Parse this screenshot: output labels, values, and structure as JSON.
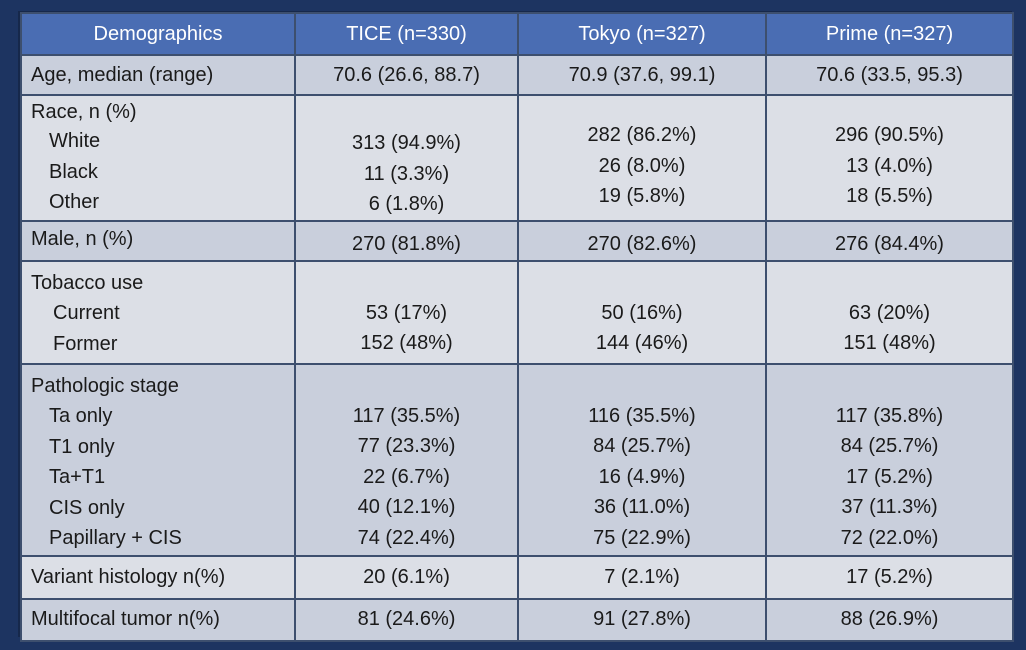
{
  "columns": [
    "Demographics",
    "TICE  (n=330)",
    "Tokyo  (n=327)",
    "Prime  (n=327)"
  ],
  "age": {
    "label": "Age, median (range)",
    "tice": "70.6 (26.6, 88.7)",
    "tokyo": "70.9 (37.6, 99.1)",
    "prime": "70.6 (33.5, 95.3)"
  },
  "race": {
    "label": "Race, n (%)",
    "rows": [
      {
        "label": "White",
        "tice": "313 (94.9%)",
        "tokyo": "282 (86.2%)",
        "prime": "296 (90.5%)"
      },
      {
        "label": "Black",
        "tice": "11 (3.3%)",
        "tokyo": "26 (8.0%)",
        "prime": "13 (4.0%)"
      },
      {
        "label": "Other",
        "tice": "6 (1.8%)",
        "tokyo": "19 (5.8%)",
        "prime": "18 (5.5%)"
      }
    ]
  },
  "male": {
    "label": "Male, n (%)",
    "tice": "270 (81.8%)",
    "tokyo": "270 (82.6%)",
    "prime": "276 (84.4%)"
  },
  "tobacco": {
    "label": "Tobacco use",
    "rows": [
      {
        "label": "Current",
        "tice": "53 (17%)",
        "tokyo": "50 (16%)",
        "prime": "63 (20%)"
      },
      {
        "label": "Former",
        "tice": "152 (48%)",
        "tokyo": "144 (46%)",
        "prime": "151 (48%)"
      }
    ]
  },
  "stage": {
    "label": "Pathologic stage",
    "rows": [
      {
        "label": "Ta only",
        "tice": "117 (35.5%)",
        "tokyo": "116 (35.5%)",
        "prime": "117 (35.8%)"
      },
      {
        "label": "T1 only",
        "tice": "77 (23.3%)",
        "tokyo": "84 (25.7%)",
        "prime": "84 (25.7%)"
      },
      {
        "label": "Ta+T1",
        "tice": "22 (6.7%)",
        "tokyo": "16 (4.9%)",
        "prime": "17 (5.2%)"
      },
      {
        "label": "CIS only",
        "tice": "40 (12.1%)",
        "tokyo": "36 (11.0%)",
        "prime": "37 (11.3%)"
      },
      {
        "label": "Papillary + CIS",
        "tice": "74 (22.4%)",
        "tokyo": "75 (22.9%)",
        "prime": "72 (22.0%)"
      }
    ]
  },
  "variant": {
    "label": "Variant histology n(%)",
    "tice": "20 (6.1%)",
    "tokyo": "7 (2.1%)",
    "prime": "17 (5.2%)"
  },
  "multifocal": {
    "label": "Multifocal tumor n(%)",
    "tice": "81 (24.6%)",
    "tokyo": "91 (27.8%)",
    "prime": "88 (26.9%)"
  }
}
